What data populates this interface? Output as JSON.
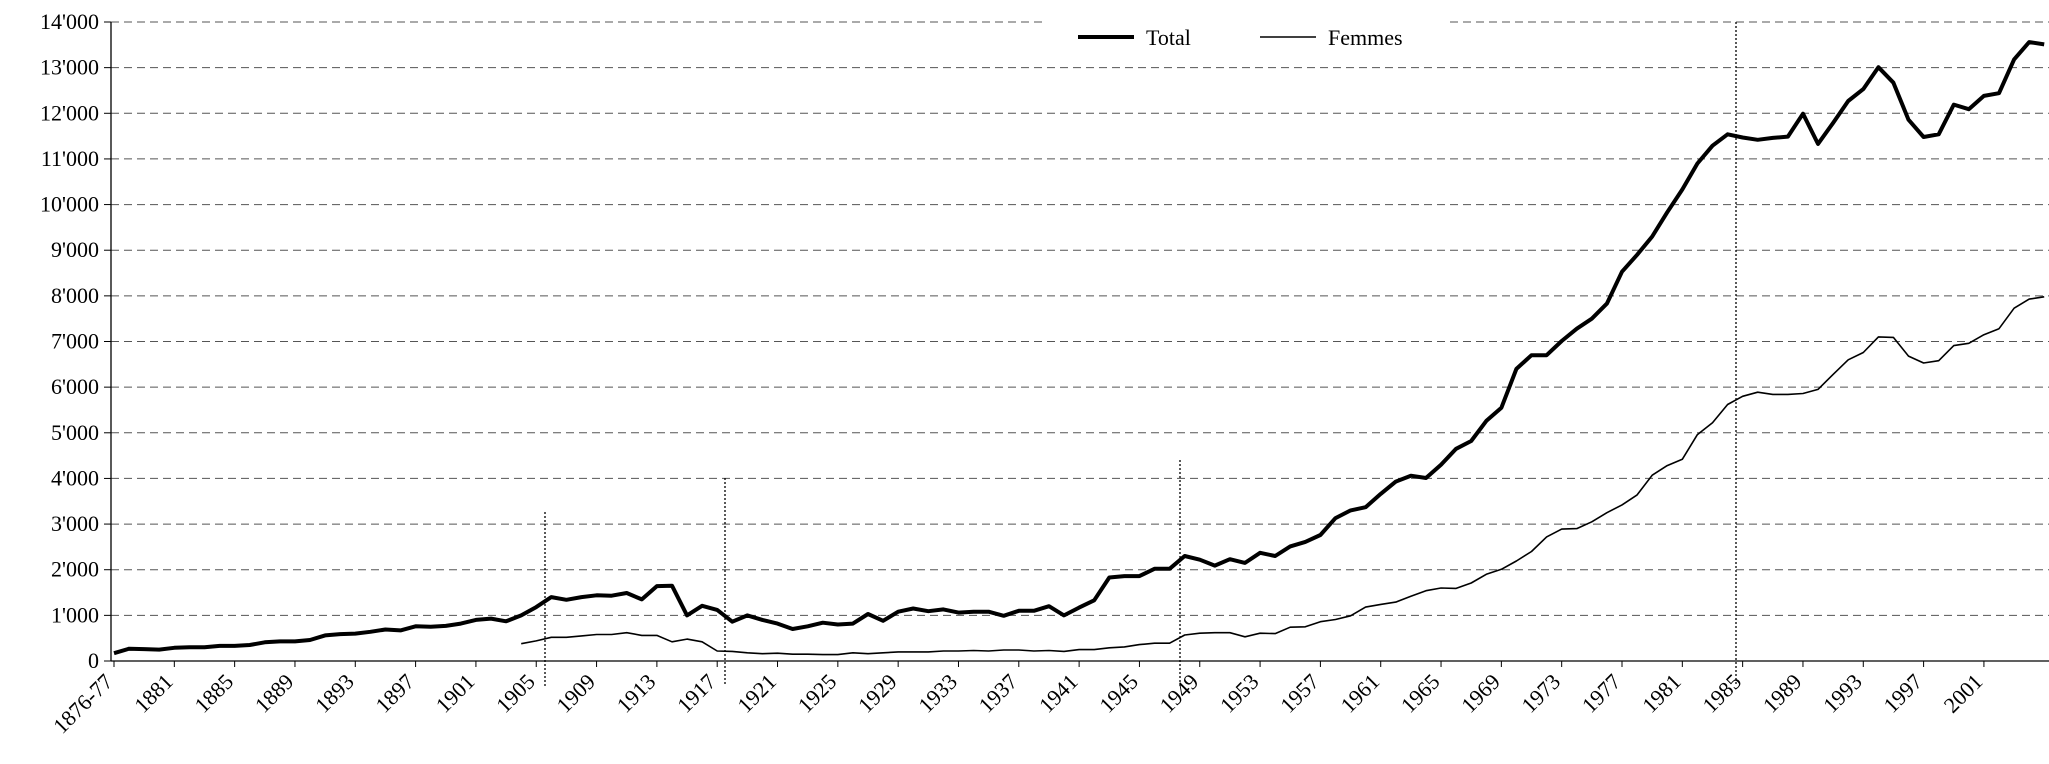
{
  "chart_data": {
    "type": "line",
    "categories": [
      "1876-77",
      null,
      null,
      null,
      "1881",
      null,
      null,
      null,
      "1885",
      null,
      null,
      null,
      "1889",
      null,
      null,
      null,
      "1893",
      null,
      null,
      null,
      "1897",
      null,
      null,
      null,
      "1901",
      null,
      null,
      null,
      "1905",
      null,
      null,
      null,
      "1909",
      null,
      null,
      null,
      "1913",
      null,
      null,
      null,
      "1917",
      null,
      null,
      null,
      "1921",
      null,
      null,
      null,
      "1925",
      null,
      null,
      null,
      "1929",
      null,
      null,
      null,
      "1933",
      null,
      null,
      null,
      "1937",
      null,
      null,
      null,
      "1941",
      null,
      null,
      null,
      "1945",
      null,
      null,
      null,
      "1949",
      null,
      null,
      null,
      "1953",
      null,
      null,
      null,
      "1957",
      null,
      null,
      null,
      "1961",
      null,
      null,
      null,
      "1965",
      null,
      null,
      null,
      "1969",
      null,
      null,
      null,
      "1973",
      null,
      null,
      null,
      "1977",
      null,
      null,
      null,
      "1981",
      null,
      null,
      null,
      "1985",
      null,
      null,
      null,
      "1989",
      null,
      null,
      null,
      "1993",
      null,
      null,
      null,
      "1997",
      null,
      null,
      null,
      "2001",
      null,
      null,
      null,
      null
    ],
    "series": [
      {
        "name": "Total",
        "color": "#000000",
        "width": 4,
        "values": [
          170,
          270,
          260,
          250,
          290,
          300,
          300,
          330,
          330,
          350,
          410,
          430,
          430,
          460,
          560,
          590,
          600,
          640,
          690,
          670,
          760,
          750,
          770,
          820,
          900,
          930,
          870,
          1000,
          1180,
          1400,
          1340,
          1400,
          1440,
          1430,
          1490,
          1350,
          1640,
          1650,
          1000,
          1210,
          1120,
          860,
          1000,
          900,
          820,
          700,
          760,
          840,
          800,
          820,
          1030,
          880,
          1080,
          1150,
          1090,
          1130,
          1060,
          1080,
          1080,
          990,
          1100,
          1100,
          1200,
          1000,
          1170,
          1330,
          1830,
          1860,
          1860,
          2020,
          2020,
          2300,
          2220,
          2090,
          2230,
          2150,
          2370,
          2300,
          2510,
          2610,
          2760,
          3130,
          3300,
          3370,
          3660,
          3930,
          4060,
          4010,
          4300,
          4650,
          4820,
          5260,
          5550,
          6400,
          6700,
          6700,
          7010,
          7280,
          7500,
          7830,
          8530,
          8900,
          9300,
          9830,
          10330,
          10900,
          11290,
          11540,
          11470,
          11420,
          11460,
          11490,
          11990,
          11330,
          11790,
          12270,
          12530,
          13010,
          12670,
          11860,
          11480,
          11540,
          12190,
          12090,
          12380,
          12440,
          13180,
          13560,
          13510
        ]
      },
      {
        "name": "Femmes",
        "color": "#000000",
        "width": 1.6,
        "values": [
          null,
          null,
          null,
          null,
          null,
          null,
          null,
          null,
          null,
          null,
          null,
          null,
          null,
          null,
          null,
          null,
          null,
          null,
          null,
          null,
          null,
          null,
          null,
          null,
          null,
          null,
          null,
          380,
          440,
          520,
          520,
          550,
          580,
          580,
          620,
          560,
          560,
          420,
          480,
          420,
          220,
          210,
          180,
          160,
          170,
          150,
          150,
          140,
          140,
          180,
          160,
          180,
          200,
          200,
          200,
          220,
          220,
          230,
          220,
          240,
          240,
          220,
          230,
          210,
          250,
          250,
          290,
          310,
          360,
          390,
          390,
          570,
          610,
          620,
          620,
          530,
          610,
          600,
          740,
          750,
          860,
          910,
          990,
          1180,
          1240,
          1290,
          1420,
          1540,
          1600,
          1590,
          1710,
          1900,
          2010,
          2190,
          2400,
          2720,
          2890,
          2900,
          3050,
          3250,
          3420,
          3640,
          4070,
          4280,
          4420,
          4960,
          5220,
          5620,
          5800,
          5890,
          5840,
          5840,
          5860,
          5950,
          6280,
          6600,
          6760,
          7100,
          7090,
          6680,
          6530,
          6580,
          6910,
          6960,
          7150,
          7280,
          7730,
          7930,
          7980
        ]
      }
    ],
    "ylim": [
      0,
      14000
    ],
    "yticks": [
      0,
      {
        "value": 1000,
        "label": "1'000"
      },
      {
        "value": 2000,
        "label": "2'000"
      },
      {
        "value": 3000,
        "label": "3'000"
      },
      {
        "value": 4000,
        "label": "4'000"
      },
      {
        "value": 5000,
        "label": "5'000"
      },
      {
        "value": 6000,
        "label": "6'000"
      },
      {
        "value": 7000,
        "label": "7'000"
      },
      {
        "value": 8000,
        "label": "8'000"
      },
      {
        "value": 9000,
        "label": "9'000"
      },
      {
        "value": 10000,
        "label": "10'000"
      },
      {
        "value": 11000,
        "label": "11'000"
      },
      {
        "value": 12000,
        "label": "12'000"
      },
      {
        "value": 13000,
        "label": "13'000"
      },
      {
        "value": 14000,
        "label": "14'000"
      }
    ],
    "grid": true,
    "legend": "top"
  }
}
